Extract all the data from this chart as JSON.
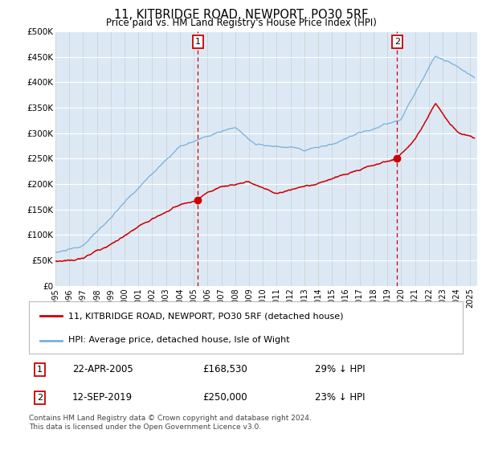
{
  "title": "11, KITBRIDGE ROAD, NEWPORT, PO30 5RF",
  "subtitle": "Price paid vs. HM Land Registry's House Price Index (HPI)",
  "background_color": "#ffffff",
  "plot_bg_color": "#dce9f5",
  "ylabel_ticks": [
    "£0",
    "£50K",
    "£100K",
    "£150K",
    "£200K",
    "£250K",
    "£300K",
    "£350K",
    "£400K",
    "£450K",
    "£500K"
  ],
  "ytick_values": [
    0,
    50000,
    100000,
    150000,
    200000,
    250000,
    300000,
    350000,
    400000,
    450000,
    500000
  ],
  "xlim_start": 1995.0,
  "xlim_end": 2025.5,
  "ylim_min": 0,
  "ylim_max": 500000,
  "sale1_date": 2005.31,
  "sale1_price": 168530,
  "sale1_label": "1",
  "sale2_date": 2019.71,
  "sale2_price": 250000,
  "sale2_label": "2",
  "hpi_color": "#7ab0d8",
  "price_color": "#cc0000",
  "dashed_line_color": "#cc0000",
  "legend1_label": "11, KITBRIDGE ROAD, NEWPORT, PO30 5RF (detached house)",
  "legend2_label": "HPI: Average price, detached house, Isle of Wight",
  "annot1_label": "1",
  "annot1_date": "22-APR-2005",
  "annot1_price": "£168,530",
  "annot1_hpi": "29% ↓ HPI",
  "annot2_label": "2",
  "annot2_date": "12-SEP-2019",
  "annot2_price": "£250,000",
  "annot2_hpi": "23% ↓ HPI",
  "footer": "Contains HM Land Registry data © Crown copyright and database right 2024.\nThis data is licensed under the Open Government Licence v3.0."
}
